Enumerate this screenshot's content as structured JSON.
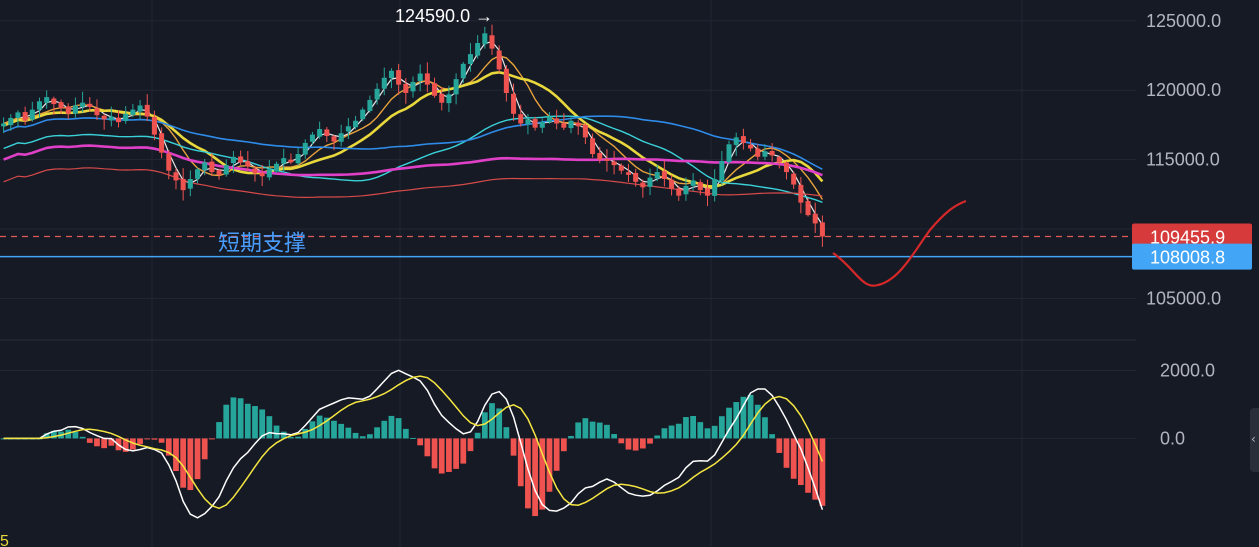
{
  "chart_data": {
    "type": "candlestick",
    "panes": [
      {
        "name": "price",
        "ylim": [
          102000,
          126500
        ],
        "y_ticks": [
          "125000.0",
          "120000.0",
          "115000.0",
          "105000.0"
        ],
        "y_tick_values": [
          125000,
          120000,
          115000,
          105000
        ],
        "peak_annotation": {
          "label": "124590.0 →",
          "value": 124590
        },
        "price_tags": [
          {
            "label": "109455.9",
            "value": 109455.9,
            "color": "#d63a3a"
          },
          {
            "label": "108008.8",
            "value": 108008.8,
            "color": "#42a5f5"
          }
        ],
        "support_line": {
          "label": "短期支撑",
          "value": 108008.8,
          "color": "#42a5f5"
        },
        "current_price_line": {
          "value": 109455.9,
          "color": "#e05a5a"
        },
        "candles_ohlc_close_path": [
          117600,
          118000,
          118400,
          117800,
          118600,
          119200,
          119500,
          119000,
          118700,
          118300,
          118900,
          119100,
          118800,
          118200,
          117900,
          118100,
          117700,
          118300,
          118600,
          118900,
          118100,
          116800,
          115500,
          114200,
          113500,
          112800,
          113600,
          114300,
          114800,
          114100,
          113900,
          114600,
          115200,
          114800,
          114500,
          114000,
          113800,
          114300,
          114700,
          115100,
          114800,
          115400,
          116200,
          116800,
          117200,
          116700,
          116300,
          116900,
          117400,
          117800,
          118600,
          119300,
          120100,
          120900,
          121400,
          120400,
          119800,
          120600,
          121200,
          120400,
          119600,
          119100,
          119700,
          120800,
          121900,
          122600,
          123400,
          124100,
          123000,
          121500,
          119800,
          118300,
          117600,
          117900,
          117300,
          117700,
          118100,
          117600,
          117300,
          117800,
          117400,
          116600,
          115400,
          115000,
          114900,
          114600,
          114200,
          113900,
          113400,
          113000,
          113700,
          114100,
          113600,
          112900,
          112400,
          113100,
          113500,
          112800,
          112400,
          113600,
          114900,
          116100,
          116600,
          116200,
          115800,
          115200,
          115600,
          115300,
          114800,
          114100,
          113200,
          111900,
          111000,
          110400,
          109455.9
        ],
        "moving_averages": [
          {
            "name": "MA-white",
            "color": "#e8e8e8"
          },
          {
            "name": "MA-orange",
            "color": "#e8a33c"
          },
          {
            "name": "MA-yellow",
            "color": "#e8d83c"
          },
          {
            "name": "MA-cyan",
            "color": "#3ad1d8"
          },
          {
            "name": "MA-blue",
            "color": "#2e8be8"
          },
          {
            "name": "MA-magenta",
            "color": "#e040c8"
          },
          {
            "name": "MA-red",
            "color": "#d64a4a"
          }
        ],
        "projection_curve_color": "#d62828"
      },
      {
        "name": "macd",
        "ylim": [
          -3200,
          2900
        ],
        "y_ticks": [
          "2000.0",
          "0.0"
        ],
        "y_tick_values": [
          2000,
          0
        ],
        "histogram_up_color": "#26a69a",
        "histogram_down_color": "#ef5350",
        "dif_color": "#ffffff",
        "dea_color": "#f5e642",
        "bottom_left_label": "5"
      }
    ]
  }
}
